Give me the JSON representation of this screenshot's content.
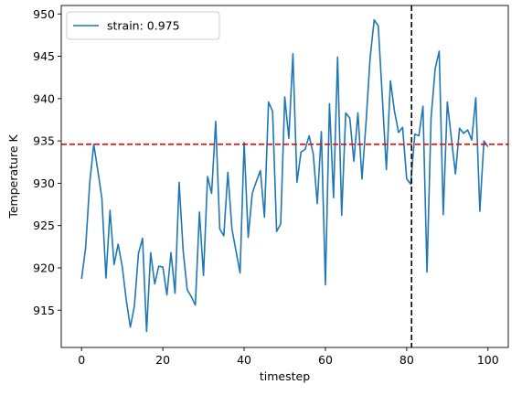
{
  "chart_data": {
    "type": "line",
    "xlabel": "timestep",
    "ylabel": "Temperature K",
    "xlim": [
      -5,
      105
    ],
    "ylim": [
      910.6,
      951.0
    ],
    "xticks": [
      0,
      20,
      40,
      60,
      80,
      100
    ],
    "yticks": [
      915,
      920,
      925,
      930,
      935,
      940,
      945,
      950
    ],
    "grid": false,
    "legend_position": "top-left",
    "series": [
      {
        "name": "strain: 0.975",
        "color": "#1f77b4",
        "x": [
          0,
          1,
          2,
          3,
          4,
          5,
          6,
          7,
          8,
          9,
          10,
          11,
          12,
          13,
          14,
          15,
          16,
          17,
          18,
          19,
          20,
          21,
          22,
          23,
          24,
          25,
          26,
          27,
          28,
          29,
          30,
          31,
          32,
          33,
          34,
          35,
          36,
          37,
          38,
          39,
          40,
          41,
          42,
          43,
          44,
          45,
          46,
          47,
          48,
          49,
          50,
          51,
          52,
          53,
          54,
          55,
          56,
          57,
          58,
          59,
          60,
          61,
          62,
          63,
          64,
          65,
          66,
          67,
          68,
          69,
          70,
          71,
          72,
          73,
          74,
          75,
          76,
          77,
          78,
          79,
          80,
          81,
          82,
          83,
          84,
          85,
          86,
          87,
          88,
          89,
          90,
          91,
          92,
          93,
          94,
          95,
          96,
          97,
          98,
          99,
          100
        ],
        "values": [
          918.7,
          922.4,
          930.0,
          934.6,
          931.5,
          928.2,
          918.8,
          926.8,
          920.4,
          922.8,
          920.2,
          916.2,
          913.0,
          915.5,
          921.7,
          923.5,
          912.5,
          921.8,
          918.1,
          920.2,
          920.1,
          916.8,
          921.8,
          917.0,
          930.1,
          922.0,
          917.4,
          916.6,
          915.6,
          926.6,
          919.1,
          930.8,
          928.8,
          937.3,
          924.6,
          923.8,
          931.3,
          924.6,
          922.0,
          919.4,
          934.8,
          923.6,
          928.8,
          930.2,
          931.5,
          926.0,
          939.6,
          938.5,
          924.3,
          925.2,
          940.2,
          935.3,
          945.3,
          930.1,
          933.7,
          934.0,
          935.6,
          933.5,
          927.6,
          936.1,
          918.0,
          939.4,
          928.3,
          944.9,
          926.2,
          938.3,
          937.7,
          932.6,
          938.3,
          930.5,
          937.2,
          944.8,
          949.3,
          948.6,
          940.2,
          931.6,
          942.1,
          938.5,
          936.0,
          936.6,
          930.5,
          929.9,
          935.8,
          935.6,
          939.1,
          919.5,
          937.7,
          943.5,
          945.6,
          926.3,
          939.6,
          935.3,
          931.1,
          936.5,
          935.9,
          936.3,
          935.1,
          940.1,
          926.7,
          935.0,
          934.3
        ]
      }
    ],
    "hlines": [
      {
        "y": 934.6,
        "color": "#ff0000",
        "style": "dashed"
      }
    ],
    "vlines": [
      {
        "x": 81.2,
        "color": "#000000",
        "style": "dashed"
      }
    ]
  }
}
